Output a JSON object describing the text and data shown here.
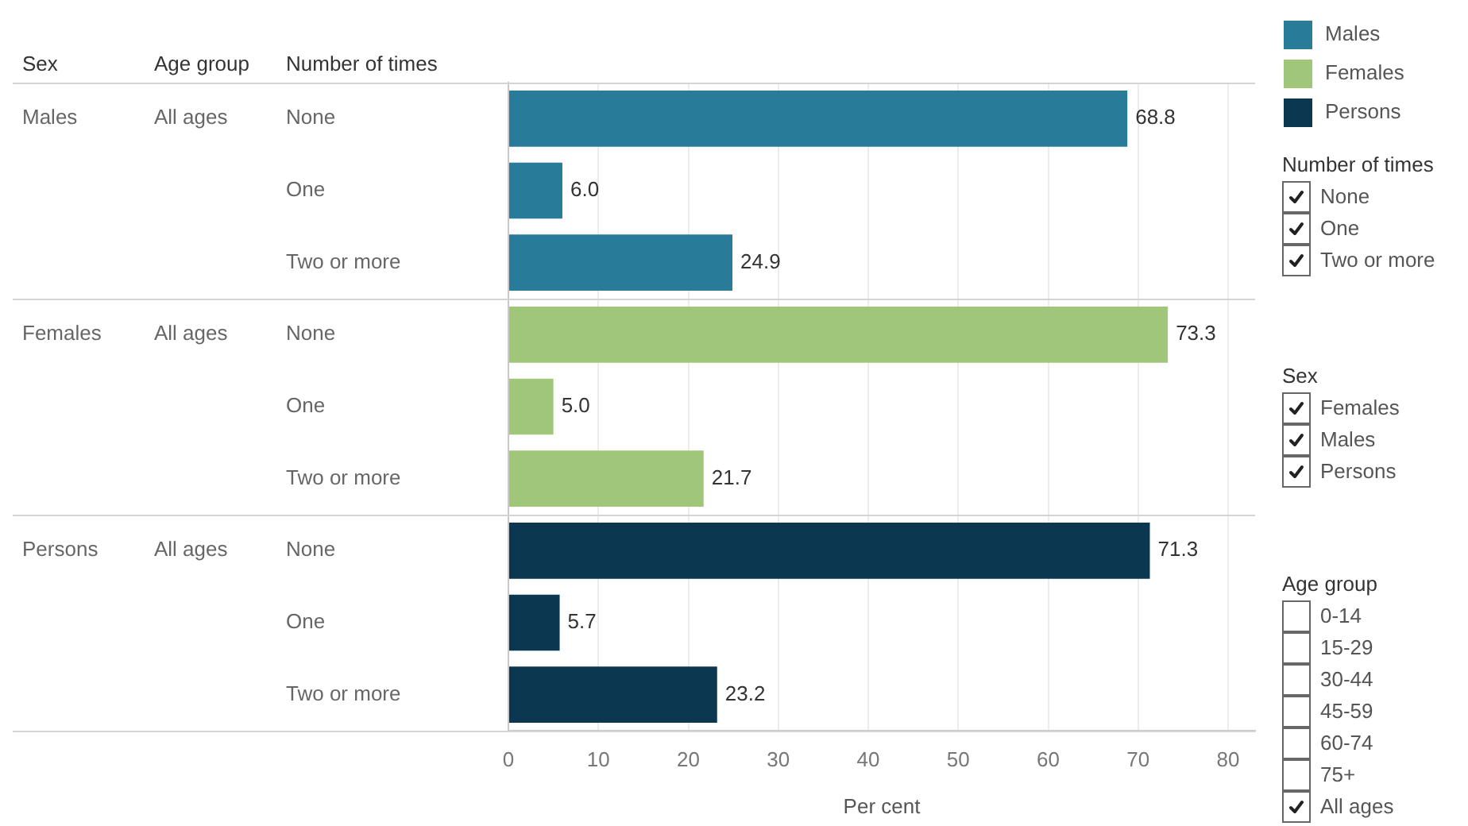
{
  "chart_data": [
    {
      "type": "bar",
      "orientation": "horizontal",
      "xlabel": "Per cent",
      "ylabel": "Number of times",
      "categories": [
        "None",
        "One",
        "Two or more",
        "None",
        "One",
        "Two or more",
        "None",
        "One",
        "Two or more"
      ],
      "series": [
        {
          "name": "Males",
          "color": "#287c99",
          "values": [
            68.8,
            6.0,
            24.9,
            null,
            null,
            null,
            null,
            null,
            null
          ],
          "value_labels": [
            "68.8",
            "6.0",
            "24.9",
            null,
            null,
            null,
            null,
            null,
            null
          ]
        },
        {
          "name": "Females",
          "color": "#a0c779",
          "values": [
            null,
            null,
            null,
            73.3,
            5.0,
            21.7,
            null,
            null,
            null
          ],
          "value_labels": [
            null,
            null,
            null,
            "73.3",
            "5.0",
            "21.7",
            null,
            null,
            null
          ]
        },
        {
          "name": "Persons",
          "color": "#0b3751",
          "values": [
            null,
            null,
            null,
            null,
            null,
            null,
            71.3,
            5.7,
            23.2
          ],
          "value_labels": [
            null,
            null,
            null,
            null,
            null,
            null,
            "71.3",
            "5.7",
            "23.2"
          ]
        }
      ],
      "xlim": [
        0,
        83
      ],
      "xticks": [
        0,
        10,
        20,
        30,
        40,
        50,
        60,
        70,
        80
      ],
      "grid": "x",
      "legend": "top right",
      "annotations": [
        "Sex",
        "Age group",
        "All ages",
        "All ages",
        "All ages"
      ]
    },
    {
      "type": "other",
      "title": "Number of times",
      "categories": [
        "None",
        "One",
        "Two or more"
      ]
    },
    {
      "type": "other",
      "title": "Sex",
      "categories": [
        "Females",
        "Males",
        "Persons"
      ]
    },
    {
      "type": "other",
      "title": "Age group",
      "categories": [
        "0-14",
        "15-29",
        "30-44",
        "45-59",
        "60-74",
        "75+",
        "All ages"
      ]
    }
  ]
}
